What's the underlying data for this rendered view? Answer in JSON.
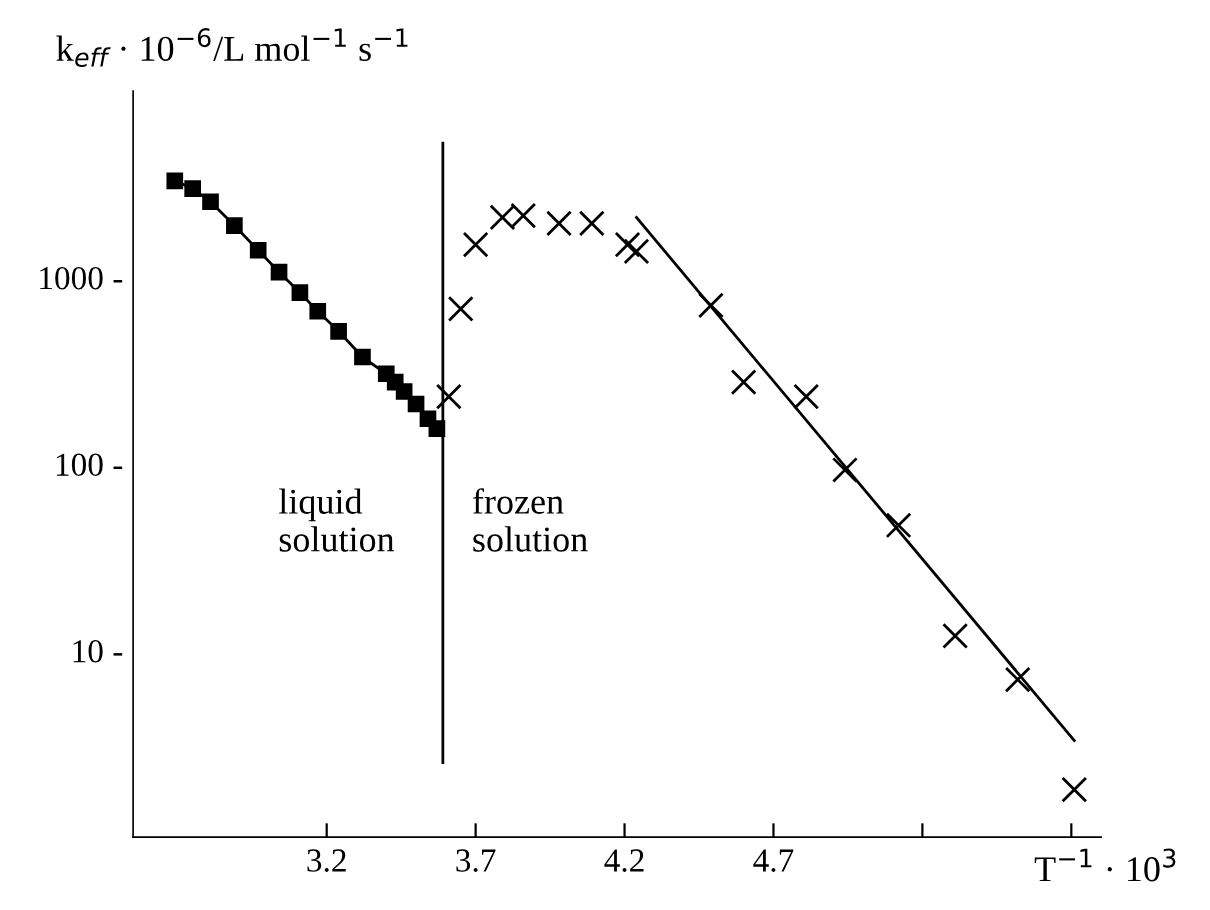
{
  "chart_data": {
    "type": "scatter",
    "ylabel": "k$_{eff}$ · 10$^{−6}$/L mol$^{−1}$ s$^{−1}$",
    "xlabel": "T$^{−1}$ · 10$^{3}$",
    "log": "y",
    "grid": false,
    "legend": false,
    "xlim": [
      2.55,
      5.8
    ],
    "ylim": [
      1,
      10000
    ],
    "xticks": [
      3.2,
      3.7,
      4.2,
      4.7,
      {
        "value": 5.2,
        "label": null
      },
      {
        "value": 5.7,
        "label": null
      }
    ],
    "yticks": [
      {
        "value": 10,
        "label": "10 -"
      },
      {
        "value": 100,
        "label": "100 -"
      },
      {
        "value": 1000,
        "label": "1000 -"
      }
    ],
    "series": [
      {
        "type": "line",
        "marker": "square",
        "color": "#000000",
        "x": [
          2.69,
          2.75,
          2.81,
          2.89,
          2.97,
          3.04,
          3.11,
          3.17,
          3.24,
          3.32,
          3.4,
          3.43,
          3.46,
          3.5,
          3.54,
          3.57
        ],
        "values": [
          3300,
          3000,
          2550,
          1900,
          1400,
          1070,
          830,
          660,
          515,
          375,
          305,
          275,
          245,
          210,
          175,
          155
        ]
      },
      {
        "marker": "cross",
        "color": "#000000",
        "x": [
          3.61,
          3.65,
          3.7,
          3.79,
          3.86,
          3.98,
          4.09,
          4.21,
          4.24,
          4.49,
          4.6,
          4.81,
          4.94,
          5.12,
          5.31,
          5.52,
          5.71
        ],
        "values": [
          230,
          680,
          1500,
          2100,
          2150,
          1950,
          1950,
          1500,
          1380,
          710,
          275,
          230,
          93,
          47,
          12,
          7,
          1.8
        ]
      },
      {
        "type": "line",
        "marker": "none",
        "color": "#000000",
        "x": [
          4.24,
          5.71
        ],
        "values": [
          2100,
          3.3
        ]
      }
    ],
    "ref_lines": [
      {
        "axis": "x",
        "value": 3.59,
        "label": null,
        "color": "#000000"
      }
    ],
    "annotations": [
      "liquid\nsolution",
      "frozen\nsolution"
    ]
  }
}
